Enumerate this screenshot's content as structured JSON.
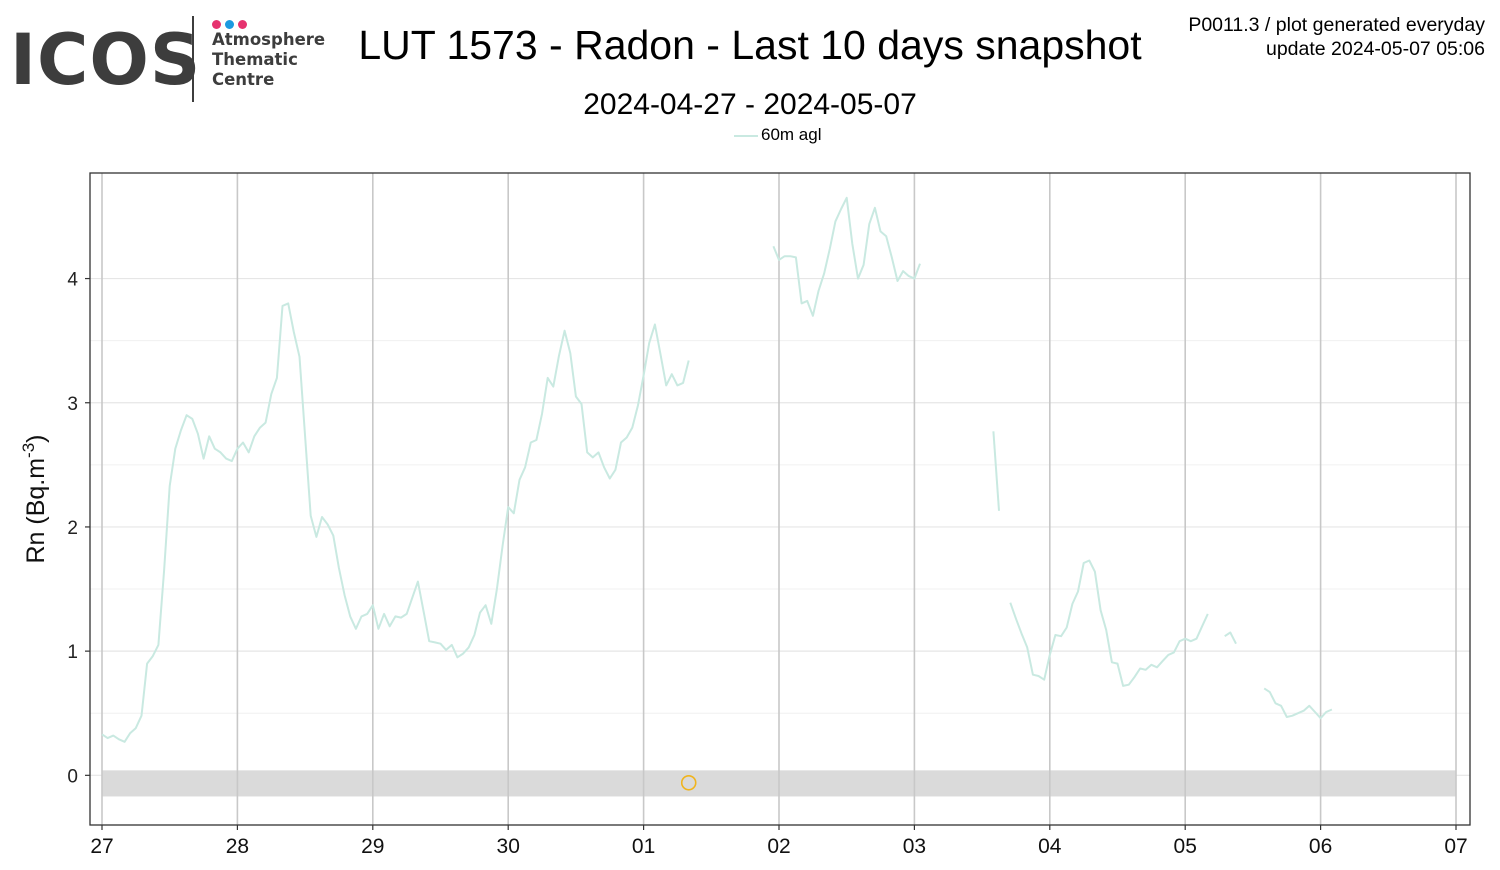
{
  "logo": {
    "wordmark": "ICOS",
    "lines": [
      "Atmosphere",
      "Thematic",
      "Centre"
    ],
    "dot_colors": [
      "#e6336f",
      "#1c9ae0",
      "#e6336f"
    ],
    "text_color": "#3d3d3d"
  },
  "header": {
    "title": "LUT 1573 - Radon - Last 10 days snapshot",
    "subtitle": "2024-04-27 - 2024-05-07",
    "product_line": "P0011.3 / plot generated everyday",
    "update_line": "update  2024-05-07 05:06"
  },
  "chart_data": {
    "type": "line",
    "title": "LUT 1573 - Radon - Last 10 days snapshot",
    "subtitle": "2024-04-27 - 2024-05-07",
    "xlabel": "",
    "ylabel": "Rn (Bq.m",
    "ylabel_sup": "-3",
    "ylabel_close": ")",
    "xlim": [
      "2024-04-27",
      "2024-05-07"
    ],
    "ylim": [
      -0.4,
      4.85
    ],
    "x_ticks": [
      {
        "date": "2024-04-27",
        "label": "27"
      },
      {
        "date": "2024-04-28",
        "label": "28"
      },
      {
        "date": "2024-04-29",
        "label": "29"
      },
      {
        "date": "2024-04-30",
        "label": "30"
      },
      {
        "date": "2024-05-01",
        "label": "01"
      },
      {
        "date": "2024-05-02",
        "label": "02"
      },
      {
        "date": "2024-05-03",
        "label": "03"
      },
      {
        "date": "2024-05-04",
        "label": "04"
      },
      {
        "date": "2024-05-05",
        "label": "05"
      },
      {
        "date": "2024-05-06",
        "label": "06"
      },
      {
        "date": "2024-05-07",
        "label": "07"
      }
    ],
    "y_ticks": [
      0,
      1,
      2,
      3,
      4
    ],
    "grid": true,
    "legend": "top-center",
    "zero_band": [
      -0.17,
      0.04
    ],
    "series": [
      {
        "name": "60m agl",
        "color": "#c9e9e1",
        "segments": [
          [
            [
              "2024-04-27 00:00",
              0.33
            ],
            [
              "2024-04-27 01:00",
              0.3
            ],
            [
              "2024-04-27 02:00",
              0.32
            ],
            [
              "2024-04-27 03:00",
              0.29
            ],
            [
              "2024-04-27 04:00",
              0.27
            ],
            [
              "2024-04-27 05:00",
              0.34
            ],
            [
              "2024-04-27 06:00",
              0.38
            ],
            [
              "2024-04-27 07:00",
              0.48
            ],
            [
              "2024-04-27 08:00",
              0.9
            ],
            [
              "2024-04-27 09:00",
              0.96
            ],
            [
              "2024-04-27 10:00",
              1.05
            ],
            [
              "2024-04-27 11:00",
              1.65
            ],
            [
              "2024-04-27 12:00",
              2.33
            ],
            [
              "2024-04-27 13:00",
              2.63
            ],
            [
              "2024-04-27 14:00",
              2.78
            ],
            [
              "2024-04-27 15:00",
              2.9
            ],
            [
              "2024-04-27 16:00",
              2.87
            ],
            [
              "2024-04-27 17:00",
              2.75
            ],
            [
              "2024-04-27 18:00",
              2.55
            ],
            [
              "2024-04-27 19:00",
              2.73
            ],
            [
              "2024-04-27 20:00",
              2.63
            ],
            [
              "2024-04-27 21:00",
              2.6
            ],
            [
              "2024-04-27 22:00",
              2.55
            ],
            [
              "2024-04-27 23:00",
              2.53
            ],
            [
              "2024-04-28 00:00",
              2.63
            ],
            [
              "2024-04-28 01:00",
              2.68
            ],
            [
              "2024-04-28 02:00",
              2.6
            ],
            [
              "2024-04-28 03:00",
              2.73
            ],
            [
              "2024-04-28 04:00",
              2.8
            ],
            [
              "2024-04-28 05:00",
              2.84
            ],
            [
              "2024-04-28 06:00",
              3.07
            ],
            [
              "2024-04-28 07:00",
              3.2
            ],
            [
              "2024-04-28 08:00",
              3.78
            ],
            [
              "2024-04-28 09:00",
              3.8
            ],
            [
              "2024-04-28 10:00",
              3.57
            ],
            [
              "2024-04-28 11:00",
              3.37
            ],
            [
              "2024-04-28 12:00",
              2.73
            ],
            [
              "2024-04-28 13:00",
              2.09
            ],
            [
              "2024-04-28 14:00",
              1.92
            ],
            [
              "2024-04-28 15:00",
              2.08
            ],
            [
              "2024-04-28 16:00",
              2.02
            ],
            [
              "2024-04-28 17:00",
              1.93
            ],
            [
              "2024-04-28 18:00",
              1.67
            ],
            [
              "2024-04-28 19:00",
              1.45
            ],
            [
              "2024-04-28 20:00",
              1.28
            ],
            [
              "2024-04-28 21:00",
              1.18
            ],
            [
              "2024-04-28 22:00",
              1.28
            ],
            [
              "2024-04-28 23:00",
              1.3
            ],
            [
              "2024-04-29 00:00",
              1.37
            ],
            [
              "2024-04-29 01:00",
              1.18
            ],
            [
              "2024-04-29 02:00",
              1.3
            ],
            [
              "2024-04-29 03:00",
              1.2
            ],
            [
              "2024-04-29 04:00",
              1.28
            ],
            [
              "2024-04-29 05:00",
              1.27
            ],
            [
              "2024-04-29 06:00",
              1.3
            ],
            [
              "2024-04-29 07:00",
              1.43
            ],
            [
              "2024-04-29 08:00",
              1.56
            ],
            [
              "2024-04-29 09:00",
              1.32
            ],
            [
              "2024-04-29 10:00",
              1.08
            ],
            [
              "2024-04-29 11:00",
              1.07
            ],
            [
              "2024-04-29 12:00",
              1.06
            ],
            [
              "2024-04-29 13:00",
              1.01
            ],
            [
              "2024-04-29 14:00",
              1.05
            ],
            [
              "2024-04-29 15:00",
              0.95
            ],
            [
              "2024-04-29 16:00",
              0.98
            ],
            [
              "2024-04-29 17:00",
              1.03
            ],
            [
              "2024-04-29 18:00",
              1.13
            ],
            [
              "2024-04-29 19:00",
              1.31
            ],
            [
              "2024-04-29 20:00",
              1.37
            ],
            [
              "2024-04-29 21:00",
              1.22
            ],
            [
              "2024-04-29 22:00",
              1.5
            ],
            [
              "2024-04-29 23:00",
              1.85
            ],
            [
              "2024-04-30 00:00",
              2.16
            ],
            [
              "2024-04-30 01:00",
              2.11
            ],
            [
              "2024-04-30 02:00",
              2.38
            ],
            [
              "2024-04-30 03:00",
              2.48
            ],
            [
              "2024-04-30 04:00",
              2.68
            ],
            [
              "2024-04-30 05:00",
              2.7
            ],
            [
              "2024-04-30 06:00",
              2.91
            ],
            [
              "2024-04-30 07:00",
              3.2
            ],
            [
              "2024-04-30 08:00",
              3.13
            ],
            [
              "2024-04-30 09:00",
              3.38
            ],
            [
              "2024-04-30 10:00",
              3.58
            ],
            [
              "2024-04-30 11:00",
              3.4
            ],
            [
              "2024-04-30 12:00",
              3.05
            ],
            [
              "2024-04-30 13:00",
              2.99
            ],
            [
              "2024-04-30 14:00",
              2.6
            ],
            [
              "2024-04-30 15:00",
              2.56
            ],
            [
              "2024-04-30 16:00",
              2.6
            ],
            [
              "2024-04-30 17:00",
              2.48
            ],
            [
              "2024-04-30 18:00",
              2.39
            ],
            [
              "2024-04-30 19:00",
              2.46
            ],
            [
              "2024-04-30 20:00",
              2.68
            ],
            [
              "2024-04-30 21:00",
              2.72
            ],
            [
              "2024-04-30 22:00",
              2.8
            ],
            [
              "2024-04-30 23:00",
              2.98
            ],
            [
              "2024-05-01 00:00",
              3.22
            ],
            [
              "2024-05-01 01:00",
              3.48
            ],
            [
              "2024-05-01 02:00",
              3.63
            ],
            [
              "2024-05-01 03:00",
              3.39
            ],
            [
              "2024-05-01 04:00",
              3.14
            ],
            [
              "2024-05-01 05:00",
              3.23
            ],
            [
              "2024-05-01 06:00",
              3.14
            ],
            [
              "2024-05-01 07:00",
              3.16
            ],
            [
              "2024-05-01 08:00",
              3.34
            ]
          ],
          [
            [
              "2024-05-01 23:00",
              4.26
            ],
            [
              "2024-05-02 00:00",
              4.15
            ],
            [
              "2024-05-02 01:00",
              4.18
            ],
            [
              "2024-05-02 02:00",
              4.18
            ],
            [
              "2024-05-02 03:00",
              4.17
            ],
            [
              "2024-05-02 04:00",
              3.8
            ],
            [
              "2024-05-02 05:00",
              3.82
            ],
            [
              "2024-05-02 06:00",
              3.7
            ],
            [
              "2024-05-02 07:00",
              3.9
            ],
            [
              "2024-05-02 08:00",
              4.04
            ],
            [
              "2024-05-02 09:00",
              4.24
            ],
            [
              "2024-05-02 10:00",
              4.46
            ],
            [
              "2024-05-02 11:00",
              4.56
            ],
            [
              "2024-05-02 12:00",
              4.65
            ],
            [
              "2024-05-02 13:00",
              4.28
            ],
            [
              "2024-05-02 14:00",
              4.0
            ],
            [
              "2024-05-02 15:00",
              4.11
            ],
            [
              "2024-05-02 16:00",
              4.44
            ],
            [
              "2024-05-02 17:00",
              4.57
            ],
            [
              "2024-05-02 18:00",
              4.38
            ],
            [
              "2024-05-02 19:00",
              4.34
            ],
            [
              "2024-05-02 20:00",
              4.17
            ],
            [
              "2024-05-02 21:00",
              3.98
            ],
            [
              "2024-05-02 22:00",
              4.06
            ],
            [
              "2024-05-02 23:00",
              4.02
            ],
            [
              "2024-05-03 00:00",
              4.0
            ],
            [
              "2024-05-03 01:00",
              4.12
            ]
          ],
          [
            [
              "2024-05-03 14:00",
              2.77
            ],
            [
              "2024-05-03 15:00",
              2.13
            ]
          ],
          [
            [
              "2024-05-03 17:00",
              1.39
            ],
            [
              "2024-05-03 18:00",
              1.26
            ],
            [
              "2024-05-03 19:00",
              1.14
            ],
            [
              "2024-05-03 20:00",
              1.03
            ],
            [
              "2024-05-03 21:00",
              0.81
            ],
            [
              "2024-05-03 22:00",
              0.8
            ],
            [
              "2024-05-03 23:00",
              0.77
            ],
            [
              "2024-05-04 00:00",
              0.97
            ],
            [
              "2024-05-04 01:00",
              1.13
            ],
            [
              "2024-05-04 02:00",
              1.12
            ],
            [
              "2024-05-04 03:00",
              1.19
            ],
            [
              "2024-05-04 04:00",
              1.38
            ],
            [
              "2024-05-04 05:00",
              1.48
            ],
            [
              "2024-05-04 06:00",
              1.71
            ],
            [
              "2024-05-04 07:00",
              1.73
            ],
            [
              "2024-05-04 08:00",
              1.64
            ],
            [
              "2024-05-04 09:00",
              1.33
            ],
            [
              "2024-05-04 10:00",
              1.17
            ],
            [
              "2024-05-04 11:00",
              0.91
            ],
            [
              "2024-05-04 12:00",
              0.9
            ],
            [
              "2024-05-04 13:00",
              0.72
            ],
            [
              "2024-05-04 14:00",
              0.73
            ],
            [
              "2024-05-04 15:00",
              0.79
            ],
            [
              "2024-05-04 16:00",
              0.86
            ],
            [
              "2024-05-04 17:00",
              0.85
            ],
            [
              "2024-05-04 18:00",
              0.89
            ],
            [
              "2024-05-04 19:00",
              0.87
            ],
            [
              "2024-05-04 20:00",
              0.92
            ],
            [
              "2024-05-04 21:00",
              0.97
            ],
            [
              "2024-05-04 22:00",
              0.99
            ],
            [
              "2024-05-04 23:00",
              1.08
            ],
            [
              "2024-05-05 00:00",
              1.1
            ],
            [
              "2024-05-05 01:00",
              1.08
            ],
            [
              "2024-05-05 02:00",
              1.1
            ],
            [
              "2024-05-05 03:00",
              1.2
            ],
            [
              "2024-05-05 04:00",
              1.3
            ]
          ],
          [
            [
              "2024-05-05 07:00",
              1.12
            ],
            [
              "2024-05-05 08:00",
              1.15
            ],
            [
              "2024-05-05 09:00",
              1.06
            ]
          ],
          [
            [
              "2024-05-05 14:00",
              0.7
            ],
            [
              "2024-05-05 15:00",
              0.67
            ],
            [
              "2024-05-05 16:00",
              0.58
            ],
            [
              "2024-05-05 17:00",
              0.56
            ],
            [
              "2024-05-05 18:00",
              0.47
            ],
            [
              "2024-05-05 19:00",
              0.48
            ],
            [
              "2024-05-05 20:00",
              0.5
            ],
            [
              "2024-05-05 21:00",
              0.52
            ],
            [
              "2024-05-05 22:00",
              0.56
            ],
            [
              "2024-05-05 23:00",
              0.51
            ],
            [
              "2024-05-06 00:00",
              0.46
            ],
            [
              "2024-05-06 01:00",
              0.51
            ],
            [
              "2024-05-06 02:00",
              0.53
            ]
          ]
        ]
      }
    ],
    "markers": [
      {
        "x": "2024-05-01 08:00",
        "y": -0.06,
        "color": "#f0b41e"
      }
    ]
  }
}
